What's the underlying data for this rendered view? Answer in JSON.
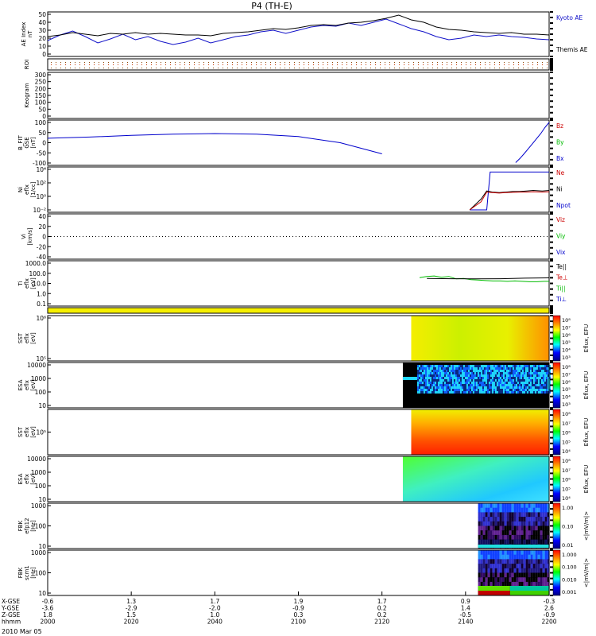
{
  "title": "P4 (TH-E)",
  "footer": {
    "date": "2010 Mar 05"
  },
  "x_axis": {
    "row_labels": [
      "X-GSE",
      "Y-GSE",
      "Z-GSE",
      "hhmm"
    ],
    "ticks": [
      {
        "x": "-0.6",
        "y": "-3.6",
        "z": "1.8",
        "time": "2000"
      },
      {
        "x": "1.3",
        "y": "-2.9",
        "z": "1.5",
        "time": "2020"
      },
      {
        "x": "1.7",
        "y": "-2.0",
        "z": "1.0",
        "time": "2040"
      },
      {
        "x": "1.9",
        "y": "-0.9",
        "z": "0.3",
        "time": "2100"
      },
      {
        "x": "1.7",
        "y": "0.2",
        "z": "0.2",
        "time": "2120"
      },
      {
        "x": "0.9",
        "y": "1.4",
        "z": "-0.5",
        "time": "2140"
      },
      {
        "x": "-0.3",
        "y": "2.6",
        "z": "-0.9",
        "time": "2200"
      }
    ],
    "range_minutes": [
      0,
      120
    ]
  },
  "panels": [
    {
      "id": "ae",
      "ylabel": [
        "AE Index",
        "nT"
      ],
      "yticks": [
        "50",
        "40",
        "30",
        "20",
        "10",
        "0"
      ],
      "right_labels": [
        {
          "text": "Kyoto AE",
          "color": "#1010c8"
        },
        {
          "text": "Themis AE",
          "color": "#000000"
        }
      ]
    },
    {
      "id": "roi",
      "ylabel": [
        "ROI"
      ],
      "yticks": [],
      "right_labels": []
    },
    {
      "id": "keogram",
      "ylabel": [
        "Keogram"
      ],
      "yticks": [
        "300",
        "250",
        "200",
        "150",
        "100",
        "50",
        "0"
      ],
      "right_labels": []
    },
    {
      "id": "bfit",
      "ylabel": [
        "B_FIT",
        "GSE",
        "[nT]"
      ],
      "yticks": [
        "100",
        "50",
        "0",
        "-50",
        "-100"
      ],
      "right_labels": [
        {
          "text": "Bz",
          "color": "#cc0000"
        },
        {
          "text": "By",
          "color": "#00bb00"
        },
        {
          "text": "Bx",
          "color": "#0000cc"
        }
      ]
    },
    {
      "id": "ni",
      "ylabel": [
        "Ni",
        "eflx",
        "[1/cc]"
      ],
      "yticks": [
        "10⁴",
        "10²",
        "10⁰",
        "10⁻²"
      ],
      "right_labels": [
        {
          "text": "Ne",
          "color": "#cc0000"
        },
        {
          "text": "Ni",
          "color": "#000000"
        },
        {
          "text": "Npot",
          "color": "#0000cc"
        }
      ]
    },
    {
      "id": "vi",
      "ylabel": [
        "Vi",
        "[km/s]"
      ],
      "yticks": [
        "40",
        "20",
        "0",
        "-20",
        "-40"
      ],
      "right_labels": [
        {
          "text": "Viz",
          "color": "#cc0000"
        },
        {
          "text": "Viy",
          "color": "#00bb00"
        },
        {
          "text": "Vix",
          "color": "#0000cc"
        }
      ]
    },
    {
      "id": "ti",
      "ylabel": [
        "Ti",
        "eflx",
        "[eV]"
      ],
      "yticks": [
        "1000.0",
        "100.0",
        "10.0",
        "1.0",
        "0.1"
      ],
      "right_labels": [
        {
          "text": "Te||",
          "color": "#000000"
        },
        {
          "text": "Te⊥",
          "color": "#cc0000"
        },
        {
          "text": "Ti||",
          "color": "#00bb00"
        },
        {
          "text": "Ti⊥",
          "color": "#0000cc"
        }
      ]
    },
    {
      "id": "flag",
      "ylabel": [],
      "yticks": [],
      "right_labels": []
    },
    {
      "id": "sst1",
      "ylabel": [
        "SST",
        "eflx",
        "[eV]"
      ],
      "yticks": [
        "10⁶",
        "10⁵"
      ],
      "colorbar": {
        "ticks": [
          "10⁸",
          "10⁷",
          "10⁶",
          "10⁵",
          "10⁴",
          "10³"
        ],
        "label": "Eflux, EFU"
      }
    },
    {
      "id": "esa1",
      "ylabel": [
        "ESA",
        "eflx",
        "[eV]"
      ],
      "yticks": [
        "10000",
        "1000",
        "100",
        "10"
      ],
      "colorbar": {
        "ticks": [
          "10⁸",
          "10⁷",
          "10⁶",
          "10⁵",
          "10⁴",
          "10³"
        ],
        "label": "Eflux, EFU"
      }
    },
    {
      "id": "sst2",
      "ylabel": [
        "SST",
        "eflx",
        "[eV]"
      ],
      "yticks": [
        "10⁵"
      ],
      "colorbar": {
        "ticks": [
          "10⁸",
          "10⁷",
          "10⁶",
          "10⁵",
          "10⁴"
        ],
        "label": "Eflux, EFU"
      }
    },
    {
      "id": "esa2",
      "ylabel": [
        "ESA",
        "eflx",
        "[eV]"
      ],
      "yticks": [
        "10000",
        "1000",
        "100",
        "10"
      ],
      "colorbar": {
        "ticks": [
          "10⁸",
          "10⁷",
          "10⁶",
          "10⁵",
          "10⁴"
        ],
        "label": "Eflux, EFU"
      }
    },
    {
      "id": "fbk1",
      "ylabel": [
        "FBK",
        "efp12",
        "[Hz]"
      ],
      "yticks": [
        "1000",
        "100",
        "10"
      ],
      "colorbar": {
        "ticks": [
          "1.00",
          "0.10",
          "0.01"
        ],
        "label": "<|mV/m|>"
      }
    },
    {
      "id": "fbk2",
      "ylabel": [
        "FBK",
        "scm1",
        "[Hz]"
      ],
      "yticks": [
        "1000",
        "100",
        "10"
      ],
      "colorbar": {
        "ticks": [
          "1.000",
          "0.100",
          "0.010",
          "0.001"
        ],
        "label": "<|mV/m|>"
      }
    }
  ],
  "chart_data": {
    "type": "line",
    "title": "P4 (TH-E)",
    "x_units": "minutes since 2000 UT",
    "ae": {
      "ylim": [
        0,
        50
      ],
      "series": [
        {
          "name": "Kyoto AE",
          "color": "#1010c8",
          "x": [
            0,
            3,
            6,
            9,
            12,
            15,
            18,
            21,
            24,
            27,
            30,
            33,
            36,
            39,
            42,
            45,
            48,
            51,
            54,
            57,
            60,
            63,
            66,
            69,
            72,
            75,
            78,
            81,
            84,
            87,
            90,
            93,
            96,
            99,
            102,
            105,
            108,
            111,
            114,
            117,
            120
          ],
          "y": [
            17,
            24,
            29,
            22,
            14,
            19,
            25,
            18,
            22,
            16,
            12,
            15,
            20,
            14,
            18,
            22,
            24,
            28,
            30,
            26,
            30,
            34,
            36,
            35,
            39,
            36,
            40,
            44,
            38,
            32,
            28,
            22,
            18,
            20,
            24,
            22,
            24,
            22,
            21,
            19,
            18
          ]
        },
        {
          "name": "Themis AE",
          "color": "#000000",
          "x": [
            0,
            3,
            6,
            9,
            12,
            15,
            18,
            21,
            24,
            27,
            30,
            33,
            36,
            39,
            42,
            45,
            48,
            51,
            54,
            57,
            60,
            63,
            66,
            69,
            72,
            75,
            78,
            81,
            84,
            87,
            90,
            93,
            96,
            99,
            102,
            105,
            108,
            111,
            114,
            117,
            120
          ],
          "y": [
            22,
            24,
            27,
            25,
            23,
            26,
            25,
            27,
            25,
            26,
            25,
            24,
            24,
            23,
            26,
            27,
            28,
            30,
            32,
            31,
            33,
            36,
            37,
            36,
            39,
            40,
            42,
            45,
            49,
            43,
            40,
            34,
            31,
            30,
            28,
            27,
            26,
            27,
            25,
            25,
            24
          ]
        }
      ]
    },
    "bfit": {
      "ylim": [
        -100,
        100
      ],
      "series": [
        {
          "name": "Bx",
          "color": "#0000cc",
          "x": [
            0,
            10,
            20,
            30,
            40,
            50,
            60,
            70,
            80
          ],
          "y": [
            22,
            28,
            36,
            42,
            45,
            42,
            30,
            0,
            -55
          ]
        },
        {
          "name": "Bx",
          "color": "#0000cc",
          "x": [
            112,
            113,
            114,
            115,
            116,
            117,
            118,
            119,
            120
          ],
          "y": [
            -98,
            -78,
            -55,
            -30,
            -5,
            20,
            45,
            75,
            100
          ]
        }
      ]
    },
    "ni": {
      "ylim_log10": [
        -3,
        4.5
      ],
      "series": [
        {
          "name": "Npot",
          "color": "#0000cc",
          "x": [
            120,
            128,
            135,
            138,
            170,
            176,
            180,
            184,
            190
          ],
          "y": [
            -3,
            -3,
            -3,
            4,
            4,
            4,
            4,
            4,
            4
          ]
        },
        {
          "name": "Ni",
          "color": "#000000",
          "x": [
            120,
            130,
            135,
            140,
            146,
            152,
            158,
            164,
            170,
            176,
            184,
            190
          ],
          "y": [
            -3,
            -1,
            0.5,
            0.3,
            0.2,
            0.3,
            0.4,
            0.4,
            0.5,
            0.6,
            0.5,
            0.6
          ]
        },
        {
          "name": "Ne",
          "color": "#cc0000",
          "x": [
            120,
            130,
            135,
            140,
            146,
            152,
            158,
            164,
            170,
            176,
            184,
            190
          ],
          "y": [
            -3,
            -1.5,
            0.3,
            0.2,
            0.1,
            0.2,
            0.25,
            0.3,
            0.3,
            0.35,
            0.3,
            0.35
          ]
        }
      ]
    },
    "ti": {
      "ylim_log10": [
        -1.3,
        3.6
      ],
      "series": [
        {
          "name": "Ti||",
          "color": "#00bb00",
          "x": [
            137,
            140,
            143,
            146,
            149,
            152,
            155,
            158,
            161,
            164,
            167,
            170,
            173,
            176,
            179,
            182,
            185,
            188,
            190
          ],
          "y": [
            1.85,
            2.0,
            2.05,
            1.9,
            2.0,
            1.7,
            1.75,
            1.6,
            1.55,
            1.5,
            1.45,
            1.45,
            1.4,
            1.45,
            1.4,
            1.35,
            1.35,
            1.4,
            1.4
          ]
        },
        {
          "name": "Te||",
          "color": "#000000",
          "x": [
            140,
            150,
            160,
            170,
            180,
            190
          ],
          "y": [
            1.75,
            1.72,
            1.7,
            1.72,
            1.78,
            1.82
          ]
        }
      ]
    }
  }
}
